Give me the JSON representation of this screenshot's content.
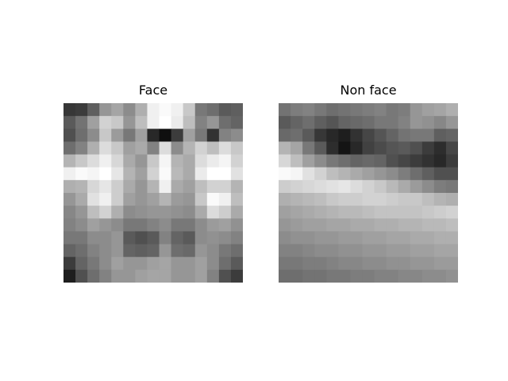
{
  "panels": [
    {
      "title": "Face",
      "image": "grayscale-face-patch",
      "grid": [
        [
          55,
          60,
          95,
          150,
          165,
          140,
          175,
          240,
          250,
          240,
          200,
          120,
          110,
          90,
          95
        ],
        [
          90,
          115,
          160,
          210,
          200,
          150,
          190,
          240,
          255,
          235,
          190,
          130,
          150,
          110,
          100
        ],
        [
          80,
          110,
          140,
          200,
          155,
          120,
          160,
          40,
          15,
          60,
          160,
          120,
          50,
          130,
          140
        ],
        [
          110,
          130,
          175,
          220,
          200,
          160,
          170,
          130,
          220,
          140,
          180,
          210,
          190,
          220,
          200
        ],
        [
          180,
          200,
          220,
          240,
          215,
          170,
          150,
          200,
          245,
          180,
          170,
          220,
          235,
          245,
          210
        ],
        [
          240,
          250,
          245,
          255,
          230,
          180,
          160,
          210,
          250,
          185,
          170,
          235,
          255,
          255,
          225
        ],
        [
          175,
          180,
          215,
          230,
          205,
          170,
          150,
          180,
          240,
          170,
          160,
          190,
          210,
          210,
          180
        ],
        [
          150,
          170,
          225,
          240,
          205,
          160,
          150,
          160,
          180,
          155,
          150,
          200,
          250,
          240,
          190
        ],
        [
          135,
          150,
          190,
          210,
          175,
          140,
          145,
          150,
          150,
          145,
          140,
          170,
          220,
          205,
          170
        ],
        [
          130,
          140,
          160,
          150,
          140,
          120,
          120,
          130,
          140,
          120,
          120,
          140,
          155,
          160,
          145
        ],
        [
          120,
          120,
          140,
          140,
          150,
          90,
          80,
          90,
          130,
          100,
          90,
          140,
          145,
          140,
          130
        ],
        [
          100,
          110,
          130,
          140,
          150,
          100,
          95,
          100,
          150,
          110,
          105,
          150,
          140,
          120,
          110
        ],
        [
          60,
          100,
          120,
          140,
          160,
          150,
          150,
          160,
          165,
          150,
          150,
          160,
          140,
          110,
          90
        ],
        [
          30,
          80,
          110,
          130,
          150,
          150,
          160,
          165,
          165,
          150,
          150,
          160,
          130,
          80,
          60
        ]
      ]
    },
    {
      "title": "Non face",
      "image": "grayscale-non-face-patch",
      "grid": [
        [
          115,
          125,
          130,
          120,
          110,
          115,
          120,
          125,
          130,
          120,
          125,
          150,
          160,
          165,
          175
        ],
        [
          90,
          100,
          110,
          95,
          85,
          100,
          105,
          110,
          120,
          120,
          130,
          150,
          145,
          135,
          150
        ],
        [
          105,
          110,
          90,
          55,
          40,
          30,
          50,
          70,
          85,
          100,
          115,
          120,
          120,
          95,
          100
        ],
        [
          180,
          165,
          120,
          90,
          45,
          20,
          40,
          65,
          75,
          85,
          90,
          80,
          60,
          45,
          70
        ],
        [
          215,
          190,
          160,
          140,
          120,
          110,
          100,
          105,
          100,
          80,
          70,
          60,
          50,
          40,
          60
        ],
        [
          250,
          245,
          225,
          210,
          190,
          180,
          170,
          160,
          150,
          140,
          125,
          110,
          95,
          80,
          80
        ],
        [
          205,
          210,
          215,
          220,
          225,
          230,
          220,
          210,
          200,
          185,
          170,
          155,
          140,
          125,
          120
        ],
        [
          175,
          180,
          185,
          190,
          200,
          205,
          205,
          210,
          210,
          205,
          200,
          200,
          190,
          180,
          175
        ],
        [
          160,
          165,
          170,
          175,
          180,
          185,
          185,
          190,
          195,
          195,
          195,
          195,
          200,
          205,
          210
        ],
        [
          150,
          155,
          160,
          160,
          165,
          165,
          170,
          170,
          175,
          175,
          180,
          180,
          185,
          185,
          190
        ],
        [
          140,
          145,
          145,
          150,
          150,
          155,
          155,
          160,
          160,
          165,
          165,
          170,
          170,
          175,
          175
        ],
        [
          130,
          130,
          135,
          140,
          140,
          145,
          145,
          150,
          150,
          155,
          155,
          160,
          160,
          165,
          165
        ],
        [
          120,
          120,
          125,
          125,
          130,
          135,
          135,
          140,
          140,
          145,
          145,
          150,
          150,
          155,
          155
        ],
        [
          110,
          110,
          115,
          115,
          120,
          120,
          125,
          125,
          130,
          130,
          135,
          135,
          140,
          140,
          145
        ]
      ]
    }
  ]
}
